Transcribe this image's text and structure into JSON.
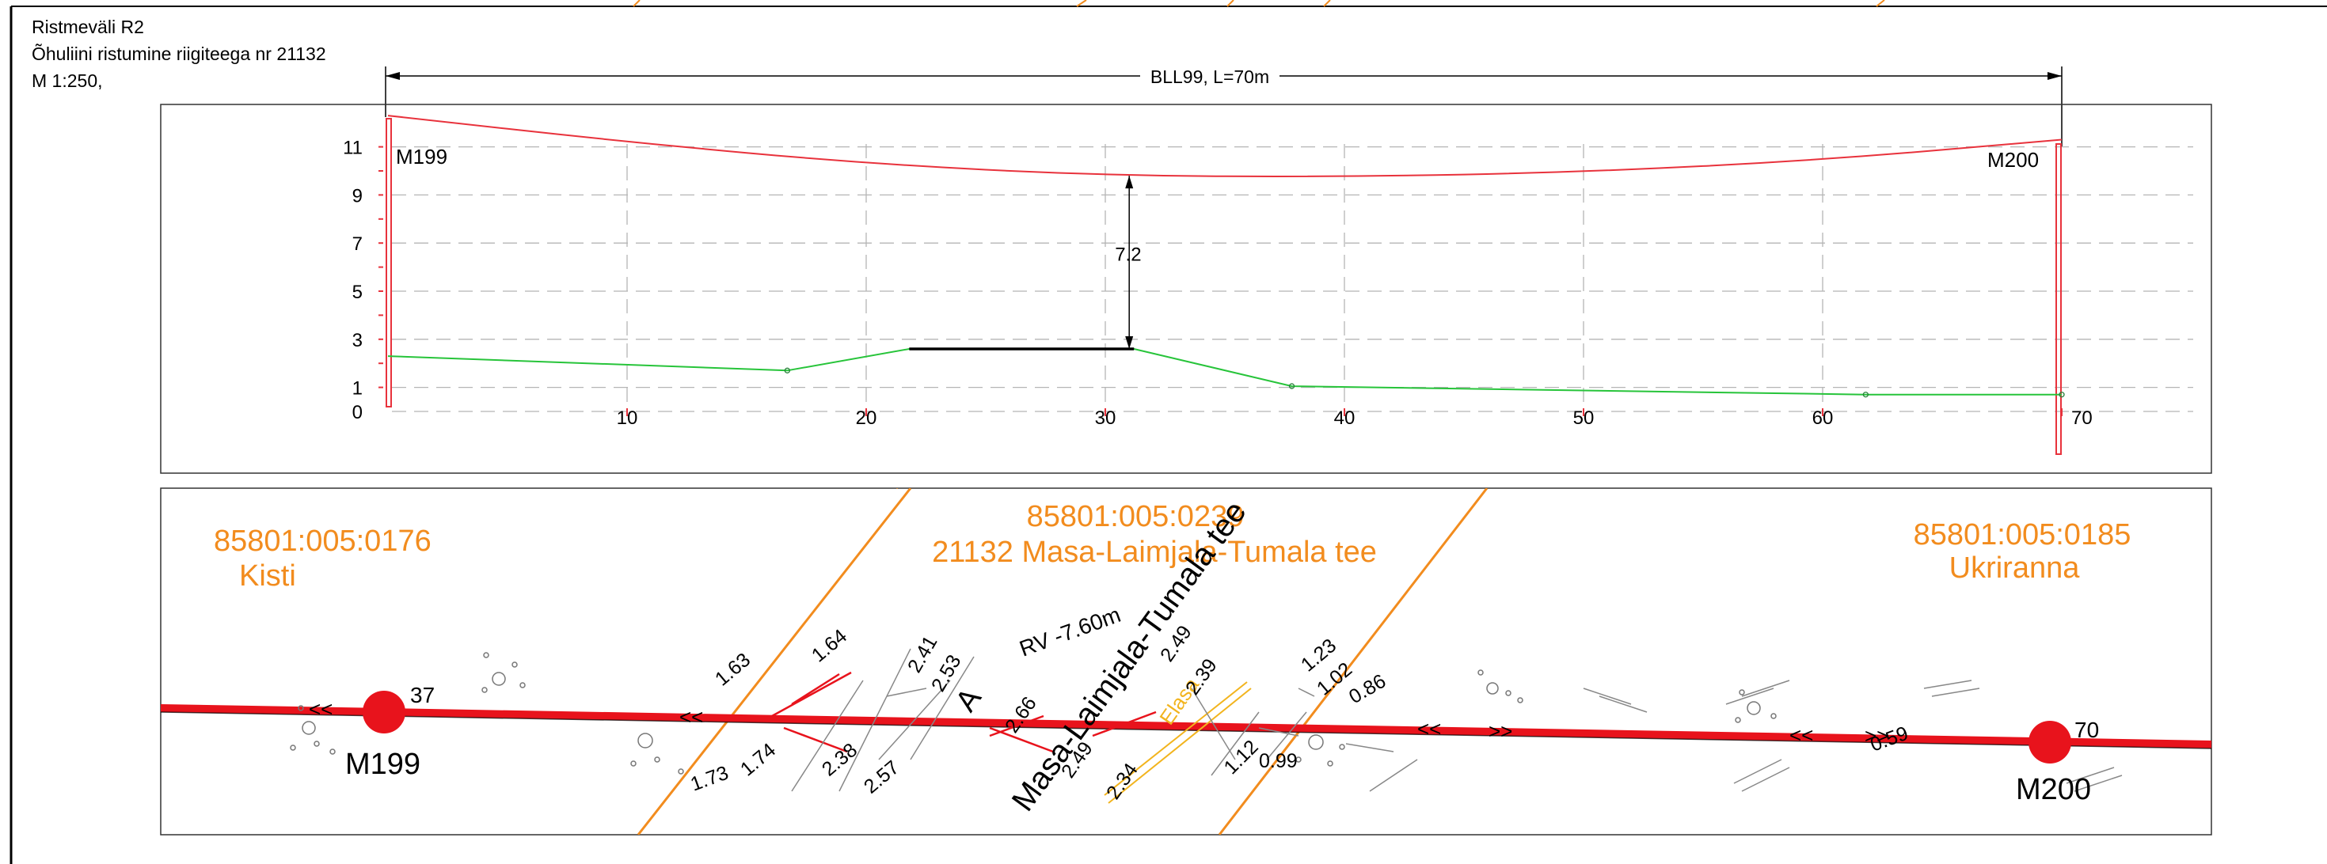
{
  "header": {
    "line1": "Ristmeväli R2",
    "line2": "Õhuliini ristumine riigiteega nr 21132",
    "line3": "M 1:250,"
  },
  "span_label": "BLL99, L=70m",
  "profile": {
    "y_ticks": [
      0,
      1,
      3,
      5,
      7,
      9,
      11
    ],
    "x_ticks": [
      10,
      20,
      30,
      40,
      50,
      60,
      70
    ],
    "pole_left": "M199",
    "pole_right": "M200",
    "clearance": "7.2",
    "conductor_color": "#e8323c",
    "ground_color": "#27c43a",
    "conductor_points": [
      [
        0,
        12.3
      ],
      [
        10,
        11.2
      ],
      [
        20,
        10.3
      ],
      [
        30,
        9.8
      ],
      [
        40,
        9.75
      ],
      [
        50,
        9.95
      ],
      [
        60,
        10.45
      ],
      [
        70,
        11.3
      ]
    ],
    "ground_points": [
      [
        0,
        2.3
      ],
      [
        16.7,
        1.7
      ],
      [
        21.8,
        2.6
      ],
      [
        31.2,
        2.6
      ],
      [
        37.8,
        1.05
      ],
      [
        61.8,
        0.7
      ],
      [
        70,
        0.7
      ]
    ],
    "road_x": [
      21.8,
      31.2
    ],
    "road_y": 2.6,
    "clearance_x": 31.0
  },
  "plan": {
    "parcels": [
      {
        "id": "85801:005:0176",
        "name": "Kisti"
      },
      {
        "id": "85801:005:0239",
        "name": "21132 Masa-Laimjala-Tumala tee"
      },
      {
        "id": "85801:005:0185",
        "name": "Ukriranna"
      }
    ],
    "pole_left": "M199",
    "pole_right": "M200",
    "pole_left_num": "37",
    "pole_right_num": "70",
    "road_name": "Masa-Laimjala-Tumala tee",
    "rv_label": "RV -7.60m",
    "a_label": "A",
    "elasa": "Elasa",
    "line_color": "#e8131c",
    "parcel_color": "#f28c1e",
    "heights": [
      "1.63",
      "1.74",
      "1.73",
      "1.64",
      "2.38",
      "2.57",
      "2.41",
      "2.53",
      "2.66",
      "2.49",
      "2.34",
      "2.49",
      "2.39",
      "1.12",
      "0.99",
      "1.23",
      "1.02",
      "0.86",
      "0.59"
    ]
  }
}
